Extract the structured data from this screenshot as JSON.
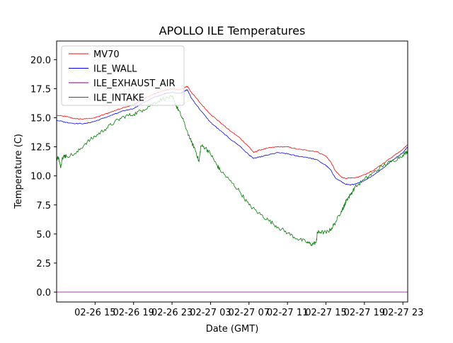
{
  "chart_data": {
    "type": "line",
    "title": "APOLLO ILE Temperatures",
    "xlabel": "Date (GMT)",
    "ylabel": "Temperature (C)",
    "x_unit": "hours since 02-26 11:00 GMT",
    "xlim": [
      0,
      36.5
    ],
    "ylim": [
      -0.85,
      21.6
    ],
    "x_ticks": [
      {
        "value": 4,
        "label": "02-26 15"
      },
      {
        "value": 8,
        "label": "02-26 19"
      },
      {
        "value": 12,
        "label": "02-26 23"
      },
      {
        "value": 16,
        "label": "02-27 03"
      },
      {
        "value": 20,
        "label": "02-27 07"
      },
      {
        "value": 24,
        "label": "02-27 11"
      },
      {
        "value": 28,
        "label": "02-27 15"
      },
      {
        "value": 32,
        "label": "02-27 19"
      },
      {
        "value": 36,
        "label": "02-27 23"
      }
    ],
    "y_ticks": [
      {
        "value": 0.0,
        "label": "0.0"
      },
      {
        "value": 2.5,
        "label": "2.5"
      },
      {
        "value": 5.0,
        "label": "5.0"
      },
      {
        "value": 7.5,
        "label": "7.5"
      },
      {
        "value": 10.0,
        "label": "10.0"
      },
      {
        "value": 12.5,
        "label": "12.5"
      },
      {
        "value": 15.0,
        "label": "15.0"
      },
      {
        "value": 17.5,
        "label": "17.5"
      },
      {
        "value": 20.0,
        "label": "20.0"
      }
    ],
    "legend_position": "top-left",
    "series": [
      {
        "name": "MV70",
        "color": "#ff0000",
        "x": [
          0,
          1,
          2,
          3,
          4,
          5,
          6,
          7,
          8,
          9,
          10,
          11,
          12,
          12.8,
          13.3,
          13.6,
          14,
          15,
          16,
          17,
          18,
          19,
          20,
          20.5,
          21,
          22,
          23,
          24,
          25,
          26,
          27,
          28,
          28.5,
          29,
          29.6,
          30,
          31,
          32,
          33,
          34,
          35,
          36,
          36.5
        ],
        "y": [
          15.2,
          15.1,
          14.9,
          14.9,
          15.0,
          15.3,
          15.6,
          15.9,
          16.1,
          16.6,
          17.0,
          17.3,
          17.5,
          17.4,
          17.6,
          17.7,
          17.2,
          16.2,
          15.3,
          14.6,
          13.9,
          13.3,
          12.5,
          12.0,
          12.2,
          12.4,
          12.5,
          12.5,
          12.3,
          12.2,
          12.1,
          11.7,
          11.2,
          10.4,
          9.9,
          9.8,
          9.8,
          10.1,
          10.5,
          11.1,
          11.7,
          12.3,
          12.7
        ]
      },
      {
        "name": "ILE_WALL",
        "color": "#0000ff",
        "x": [
          0,
          1,
          2,
          3,
          4,
          5,
          6,
          7,
          8,
          9,
          10,
          11,
          12,
          12.8,
          13.3,
          13.6,
          14,
          15,
          16,
          17,
          18,
          19,
          20,
          20.5,
          21,
          22,
          23,
          24,
          25,
          26,
          27,
          28,
          28.5,
          29,
          30,
          30.5,
          31,
          32,
          33,
          34,
          35,
          36,
          36.5
        ],
        "y": [
          14.8,
          14.6,
          14.5,
          14.5,
          14.7,
          15.0,
          15.3,
          15.6,
          15.8,
          16.3,
          16.7,
          17.0,
          17.2,
          17.1,
          17.3,
          17.4,
          16.7,
          15.6,
          14.6,
          13.9,
          13.2,
          12.6,
          11.8,
          11.5,
          11.6,
          11.8,
          12.0,
          11.9,
          11.7,
          11.6,
          11.4,
          10.9,
          10.5,
          9.8,
          9.3,
          9.2,
          9.3,
          9.6,
          10.1,
          10.7,
          11.4,
          12.0,
          12.5
        ]
      },
      {
        "name": "ILE_EXHAUST_AIR",
        "color": "#800080",
        "x": [
          0,
          36.5
        ],
        "y": [
          0.0,
          0.0
        ]
      },
      {
        "name": "ILE_INTAKE",
        "color": "#008000",
        "x": [
          0,
          0.2,
          0.4,
          0.6,
          0.8,
          1,
          2,
          3,
          4,
          5,
          6,
          7,
          8,
          9,
          10,
          11,
          12,
          12.4,
          12.7,
          13.2,
          14,
          14.4,
          14.8,
          15,
          15.5,
          16,
          16.6,
          17,
          18,
          19,
          20,
          21,
          22,
          23,
          24,
          25,
          26,
          26.5,
          27,
          27.1,
          27.3,
          28,
          28.5,
          29,
          29.6,
          29.9,
          30,
          30.1,
          30.5,
          31,
          32,
          33,
          34,
          35,
          36,
          36.5
        ],
        "y": [
          11.5,
          11.6,
          10.7,
          11.6,
          11.7,
          11.7,
          11.9,
          12.8,
          13.4,
          14.0,
          14.6,
          15.1,
          15.3,
          15.7,
          16.2,
          16.6,
          16.8,
          16.1,
          15.6,
          14.7,
          12.9,
          12.3,
          11.2,
          12.6,
          12.4,
          11.9,
          11.0,
          10.5,
          9.6,
          8.7,
          7.5,
          6.8,
          6.2,
          5.6,
          5.1,
          4.6,
          4.3,
          4.1,
          4.3,
          5.1,
          5.2,
          5.1,
          5.4,
          6.0,
          7.0,
          7.4,
          7.6,
          7.9,
          8.3,
          9.0,
          9.7,
          10.3,
          10.9,
          11.3,
          11.8,
          12.1
        ]
      }
    ]
  }
}
